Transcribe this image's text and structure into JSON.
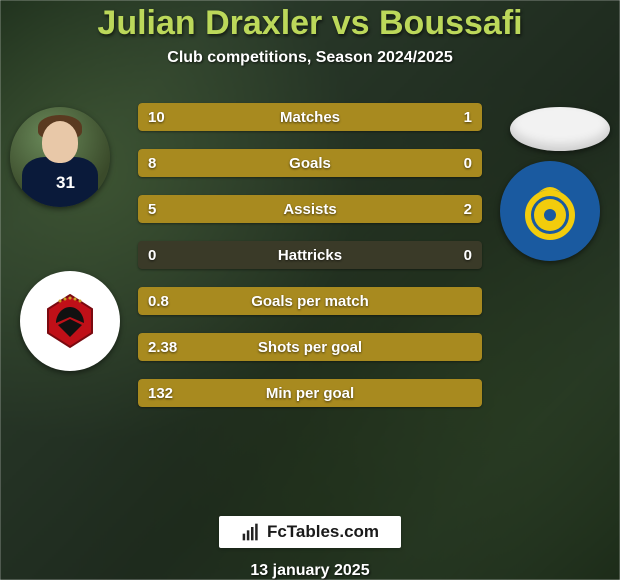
{
  "header": {
    "title": "Julian Draxler vs Boussafi",
    "title_color": "#bcd85a",
    "title_fontsize": 34,
    "subtitle": "Club competitions, Season 2024/2025",
    "subtitle_color": "#ffffff",
    "subtitle_fontsize": 16
  },
  "player1": {
    "jersey_number": "31"
  },
  "stats": {
    "bar_left_color": "#a88a1f",
    "bar_right_color": "#a88a1f",
    "bar_bg_color": "#3a3a28",
    "label_fontsize": 15,
    "value_fontsize": 15,
    "rows": [
      {
        "label": "Matches",
        "left": "10",
        "right": "1",
        "left_pct": 91,
        "right_pct": 9
      },
      {
        "label": "Goals",
        "left": "8",
        "right": "0",
        "left_pct": 100,
        "right_pct": 0
      },
      {
        "label": "Assists",
        "left": "5",
        "right": "2",
        "left_pct": 71,
        "right_pct": 29
      },
      {
        "label": "Hattricks",
        "left": "0",
        "right": "0",
        "left_pct": 0,
        "right_pct": 0
      },
      {
        "label": "Goals per match",
        "left": "0.8",
        "right": "",
        "left_pct": 100,
        "right_pct": 0
      },
      {
        "label": "Shots per goal",
        "left": "2.38",
        "right": "",
        "left_pct": 100,
        "right_pct": 0
      },
      {
        "label": "Min per goal",
        "left": "132",
        "right": "",
        "left_pct": 100,
        "right_pct": 0
      }
    ]
  },
  "brand": {
    "text": "FcTables.com",
    "fontsize": 17
  },
  "footer": {
    "date": "13 january 2025",
    "fontsize": 16
  },
  "colors": {
    "background_base": "#243224",
    "text_white": "#ffffff"
  }
}
